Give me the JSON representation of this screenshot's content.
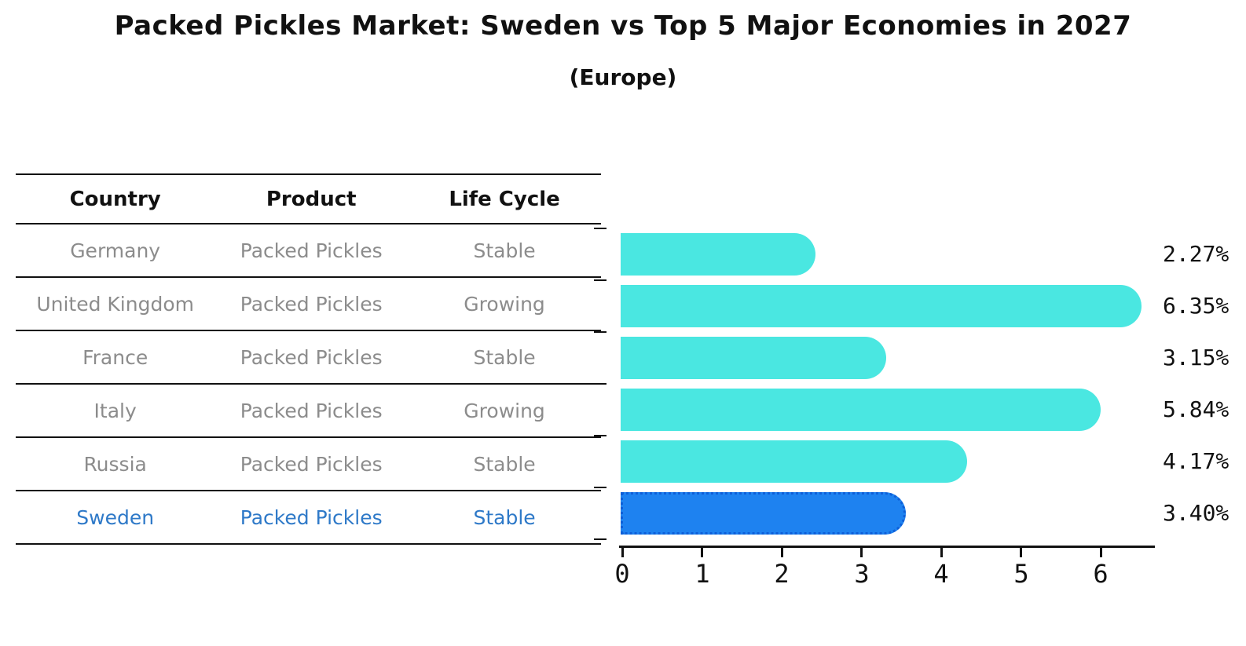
{
  "title": "Packed Pickles Market: Sweden vs Top 5 Major Economies in 2027",
  "subtitle": "(Europe)",
  "table": {
    "headers": [
      "Country",
      "Product",
      "Life Cycle"
    ],
    "rows": [
      {
        "country": "Germany",
        "product": "Packed Pickles",
        "life_cycle": "Stable",
        "highlight": false
      },
      {
        "country": "United Kingdom",
        "product": "Packed Pickles",
        "life_cycle": "Growing",
        "highlight": false
      },
      {
        "country": "France",
        "product": "Packed Pickles",
        "life_cycle": "Stable",
        "highlight": false
      },
      {
        "country": "Italy",
        "product": "Packed Pickles",
        "life_cycle": "Growing",
        "highlight": false
      },
      {
        "country": "Russia",
        "product": "Packed Pickles",
        "life_cycle": "Stable",
        "highlight": false
      },
      {
        "country": "Sweden",
        "product": "Packed Pickles",
        "life_cycle": "Stable",
        "highlight": true
      }
    ]
  },
  "chart_data": {
    "type": "bar",
    "orientation": "horizontal",
    "title": "Packed Pickles Market: Sweden vs Top 5 Major Economies in 2027",
    "subtitle": "(Europe)",
    "categories": [
      "Germany",
      "United Kingdom",
      "France",
      "Italy",
      "Russia",
      "Sweden"
    ],
    "values": [
      2.27,
      6.35,
      3.15,
      5.84,
      4.17,
      3.4
    ],
    "value_labels": [
      "2.27%",
      "6.35%",
      "3.15%",
      "5.84%",
      "4.17%",
      "3.40%"
    ],
    "highlight_index": 5,
    "x_ticks": [
      0,
      1,
      2,
      3,
      4,
      5,
      6
    ],
    "xlim": [
      0,
      6.7
    ],
    "grid": false,
    "legend": false
  },
  "colors": {
    "bar": "#4AE7E1",
    "highlight_bar": "#1E82F0",
    "highlight_border": "#0E5FD8",
    "highlight_text": "#2E79C8",
    "row_text": "#8C8C8C",
    "line": "#111111",
    "label_text": "#111111"
  }
}
